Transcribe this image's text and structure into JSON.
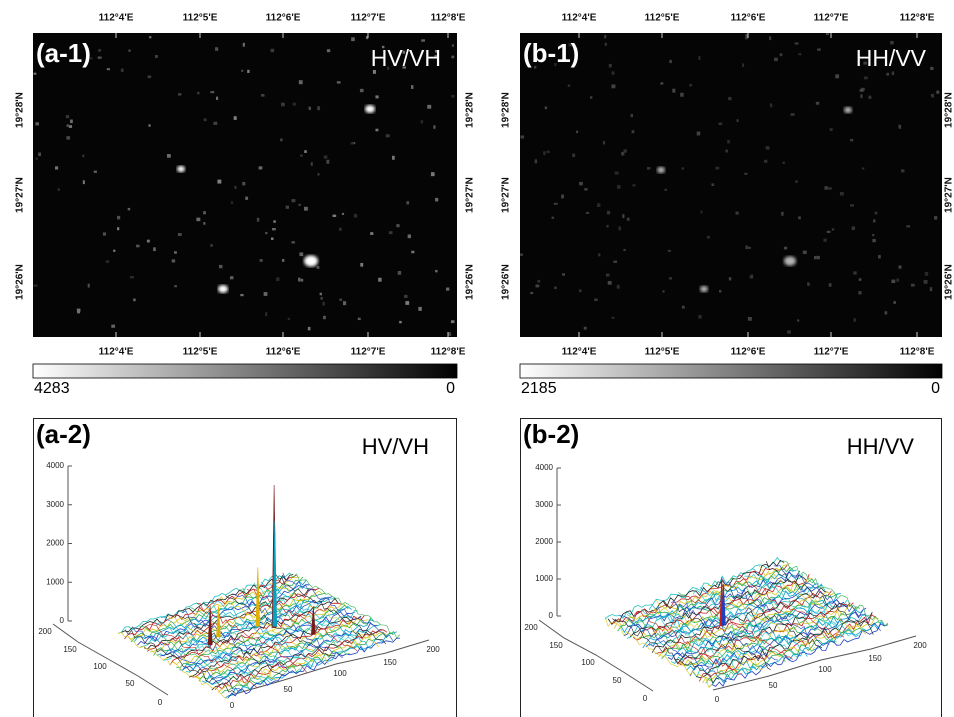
{
  "panels": [
    {
      "label": "(a-1)",
      "polarization": "HV/VH",
      "lon_ticks": [
        "112°4'E",
        "112°5'E",
        "112°6'E",
        "112°7'E",
        "112°8'E"
      ],
      "lat_ticks": [
        "19°28'N",
        "19°27'N",
        "19°26'N"
      ],
      "colorbar": {
        "max": 4283,
        "min": 0
      }
    },
    {
      "label": "(b-1)",
      "polarization": "HH/VV",
      "lon_ticks": [
        "112°4'E",
        "112°5'E",
        "112°6'E",
        "112°7'E",
        "112°8'E"
      ],
      "lat_ticks": [
        "19°28'N",
        "19°27'N",
        "19°26'N"
      ],
      "colorbar": {
        "max": 2185,
        "min": 0
      }
    }
  ],
  "plots": [
    {
      "label": "(a-2)",
      "polarization": "HV/VH",
      "z_ticks": [
        0,
        1000,
        2000,
        3000,
        4000
      ],
      "y_ticks": [
        0,
        50,
        100,
        150,
        200
      ],
      "x_ticks": [
        0,
        50,
        100,
        150,
        200
      ]
    },
    {
      "label": "(b-2)",
      "polarization": "HH/VV",
      "z_ticks": [
        0,
        1000,
        2000,
        3000,
        4000
      ],
      "y_ticks": [
        0,
        50,
        100,
        150,
        200
      ],
      "x_ticks": [
        0,
        50,
        100,
        150,
        200
      ]
    }
  ]
}
